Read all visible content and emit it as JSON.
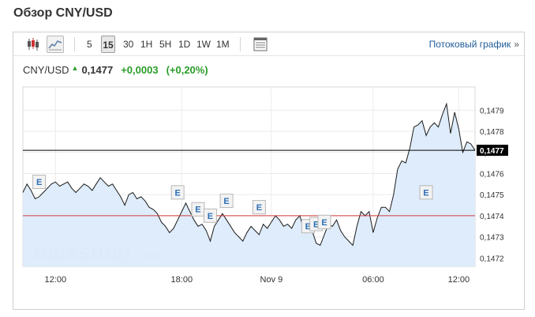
{
  "page": {
    "title": "Обзор CNY/USD"
  },
  "toolbar": {
    "chart_type_icons": [
      {
        "icon": "candlestick-icon",
        "active": false
      },
      {
        "icon": "line-chart-icon",
        "active": true
      }
    ],
    "timeframes": [
      "5",
      "15",
      "30",
      "1H",
      "5H",
      "1D",
      "1W",
      "1M"
    ],
    "active_timeframe": "15",
    "table_icon": "table-icon",
    "stream_link": "Потоковый график",
    "stream_chevron": "»"
  },
  "quote": {
    "symbol": "CNY/USD",
    "price": "0,1477",
    "change": "+0,0003",
    "change_pct": "(+0,20%)",
    "direction_color": "#2a9d2a"
  },
  "chart_data": {
    "type": "area",
    "title": "",
    "xlabel": "",
    "ylabel": "",
    "x_tick_labels": [
      "12:00",
      "18:00",
      "Nov 9",
      "06:00",
      "12:00"
    ],
    "y_tick_labels": [
      "0,1479",
      "0,1478",
      "0,1477",
      "0,1476",
      "0,1475",
      "0,1474",
      "0,1473",
      "0,1472"
    ],
    "ylim": [
      0.14716,
      0.14801
    ],
    "last_price": 0.14771,
    "last_price_label": "0,1477",
    "reference_price": 0.1474,
    "watermark_main": "investing",
    "watermark_suffix": ".com",
    "event_marker_label": "E",
    "grid": true,
    "colors": {
      "line": "#1c1c1c",
      "fill": "#dcebfb",
      "reference_line": "#d43b3b",
      "last_line": "#000000"
    },
    "series": [
      {
        "values": [
          0.14751,
          0.14755,
          0.14752,
          0.14748,
          0.14749,
          0.14751,
          0.14753,
          0.14755,
          0.14756,
          0.14754,
          0.14755,
          0.14756,
          0.14753,
          0.14751,
          0.14753,
          0.14755,
          0.14754,
          0.14752,
          0.14755,
          0.14758,
          0.14756,
          0.14754,
          0.14755,
          0.14752,
          0.14749,
          0.14745,
          0.1475,
          0.14751,
          0.14748,
          0.14749,
          0.14747,
          0.14744,
          0.14743,
          0.14741,
          0.14737,
          0.14735,
          0.14732,
          0.14734,
          0.14738,
          0.14742,
          0.14746,
          0.14742,
          0.14738,
          0.14735,
          0.14736,
          0.14733,
          0.14728,
          0.14735,
          0.14738,
          0.14741,
          0.14738,
          0.14735,
          0.14732,
          0.1473,
          0.14728,
          0.14732,
          0.14735,
          0.14733,
          0.14731,
          0.14736,
          0.14734,
          0.14737,
          0.1474,
          0.14738,
          0.14735,
          0.14736,
          0.14734,
          0.14738,
          0.1474,
          0.14733,
          0.14737,
          0.14733,
          0.14727,
          0.14726,
          0.14731,
          0.14736,
          0.14735,
          0.14738,
          0.14733,
          0.1473,
          0.14728,
          0.14726,
          0.14735,
          0.14742,
          0.1474,
          0.14742,
          0.14732,
          0.14739,
          0.14744,
          0.14744,
          0.14742,
          0.1475,
          0.14762,
          0.14766,
          0.14765,
          0.14772,
          0.14782,
          0.14783,
          0.14785,
          0.14778,
          0.14782,
          0.14784,
          0.14782,
          0.14788,
          0.14793,
          0.14779,
          0.14789,
          0.14781,
          0.1477,
          0.14775,
          0.14774,
          0.14771
        ]
      }
    ],
    "event_markers": [
      {
        "index": 4,
        "value": 0.14751
      },
      {
        "index": 38,
        "value": 0.14746
      },
      {
        "index": 43,
        "value": 0.14738
      },
      {
        "index": 46,
        "value": 0.14735
      },
      {
        "index": 50,
        "value": 0.14742
      },
      {
        "index": 58,
        "value": 0.14739
      },
      {
        "index": 70,
        "value": 0.1473
      },
      {
        "index": 72,
        "value": 0.14731
      },
      {
        "index": 74,
        "value": 0.14732
      },
      {
        "index": 99,
        "value": 0.14746
      }
    ]
  }
}
